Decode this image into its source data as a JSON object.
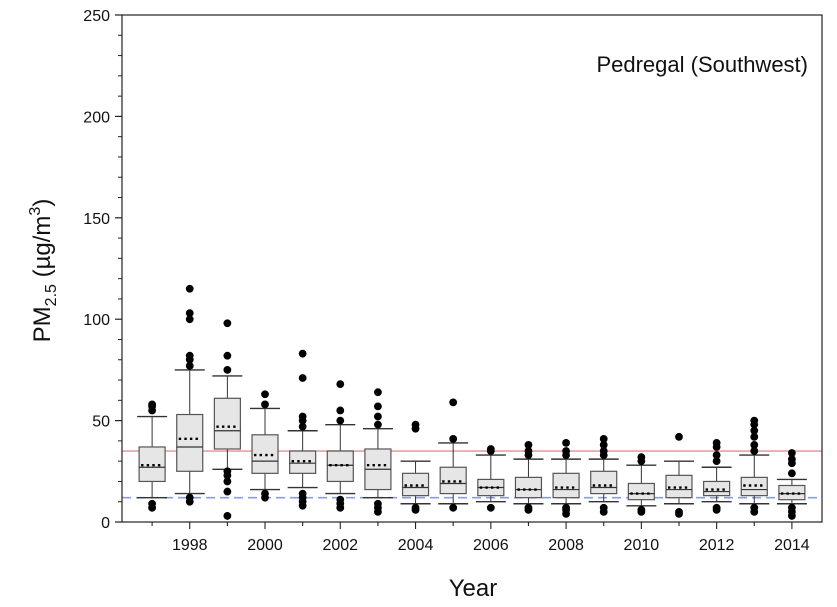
{
  "chart_data": {
    "type": "box",
    "title": "",
    "annotation": "Pedregal (Southwest)",
    "xlabel": "Year",
    "ylabel": {
      "prefix": "PM",
      "subscript": "2.5",
      "unit_prefix": " (µg/m",
      "unit_superscript": "3",
      "unit_suffix": ")"
    },
    "xlim": [
      1996.2,
      2014.8
    ],
    "ylim": [
      0,
      250
    ],
    "yticks": [
      0,
      50,
      100,
      150,
      200,
      250
    ],
    "xticks": [
      1998,
      2000,
      2002,
      2004,
      2006,
      2008,
      2010,
      2012,
      2014
    ],
    "grid": false,
    "reference_lines": [
      {
        "value": 35,
        "style": "solid",
        "color": "#e8a0a0"
      },
      {
        "value": 12,
        "style": "dashed",
        "color": "#8a9be8"
      }
    ],
    "colors": {
      "box_fill": "#e6e6e6",
      "box_stroke": "#555555",
      "whisker": "#333333",
      "outlier": "#000000",
      "mean_marker": "#000000"
    },
    "boxes": [
      {
        "year": 1997,
        "whislo": 12,
        "q1": 20,
        "median": 27,
        "mean": 28,
        "q3": 37,
        "whishi": 52,
        "outliers": [
          7,
          9,
          55,
          57,
          58
        ]
      },
      {
        "year": 1998,
        "whislo": 14,
        "q1": 25,
        "median": 37,
        "mean": 41,
        "q3": 53,
        "whishi": 75,
        "outliers": [
          10,
          12,
          77,
          80,
          82,
          100,
          103,
          115
        ]
      },
      {
        "year": 1999,
        "whislo": 26,
        "q1": 36,
        "median": 45,
        "mean": 47,
        "q3": 61,
        "whishi": 72,
        "outliers": [
          3,
          15,
          20,
          23,
          25,
          75,
          82,
          98
        ]
      },
      {
        "year": 2000,
        "whislo": 16,
        "q1": 24,
        "median": 30,
        "mean": 33,
        "q3": 43,
        "whishi": 56,
        "outliers": [
          12,
          14,
          58,
          63
        ]
      },
      {
        "year": 2001,
        "whislo": 17,
        "q1": 24,
        "median": 29,
        "mean": 30,
        "q3": 35,
        "whishi": 45,
        "outliers": [
          8,
          10,
          12,
          14,
          47,
          50,
          52,
          71,
          83
        ]
      },
      {
        "year": 2002,
        "whislo": 14,
        "q1": 20,
        "median": 28,
        "mean": 28,
        "q3": 35,
        "whishi": 48,
        "outliers": [
          7,
          9,
          11,
          50,
          55,
          68
        ]
      },
      {
        "year": 2003,
        "whislo": 12,
        "q1": 16,
        "median": 26,
        "mean": 28,
        "q3": 36,
        "whishi": 46,
        "outliers": [
          5,
          7,
          9,
          48,
          52,
          57,
          64
        ]
      },
      {
        "year": 2004,
        "whislo": 9,
        "q1": 13,
        "median": 17,
        "mean": 18,
        "q3": 24,
        "whishi": 30,
        "outliers": [
          6,
          7,
          46,
          48
        ]
      },
      {
        "year": 2005,
        "whislo": 9,
        "q1": 14,
        "median": 19,
        "mean": 20,
        "q3": 27,
        "whishi": 39,
        "outliers": [
          7,
          41,
          59
        ]
      },
      {
        "year": 2006,
        "whislo": 10,
        "q1": 13,
        "median": 17,
        "mean": 17,
        "q3": 21,
        "whishi": 33,
        "outliers": [
          7,
          35,
          36
        ]
      },
      {
        "year": 2007,
        "whislo": 9,
        "q1": 12,
        "median": 16,
        "mean": 16,
        "q3": 22,
        "whishi": 31,
        "outliers": [
          6,
          7,
          33,
          35,
          38
        ]
      },
      {
        "year": 2008,
        "whislo": 9,
        "q1": 12,
        "median": 16,
        "mean": 17,
        "q3": 24,
        "whishi": 31,
        "outliers": [
          4,
          6,
          7,
          33,
          35,
          39
        ]
      },
      {
        "year": 2009,
        "whislo": 10,
        "q1": 14,
        "median": 17,
        "mean": 18,
        "q3": 25,
        "whishi": 31,
        "outliers": [
          5,
          7,
          33,
          35,
          38,
          41
        ]
      },
      {
        "year": 2010,
        "whislo": 8,
        "q1": 11,
        "median": 14,
        "mean": 14,
        "q3": 19,
        "whishi": 28,
        "outliers": [
          5,
          6,
          30,
          32
        ]
      },
      {
        "year": 2011,
        "whislo": 9,
        "q1": 12,
        "median": 16,
        "mean": 17,
        "q3": 23,
        "whishi": 30,
        "outliers": [
          4,
          5,
          42
        ]
      },
      {
        "year": 2012,
        "whislo": 10,
        "q1": 13,
        "median": 15,
        "mean": 16,
        "q3": 20,
        "whishi": 27,
        "outliers": [
          6,
          7,
          30,
          33,
          37,
          39
        ]
      },
      {
        "year": 2013,
        "whislo": 9,
        "q1": 13,
        "median": 16,
        "mean": 18,
        "q3": 22,
        "whishi": 33,
        "outliers": [
          5,
          7,
          35,
          38,
          42,
          45,
          48,
          50
        ]
      },
      {
        "year": 2014,
        "whislo": 9,
        "q1": 11,
        "median": 14,
        "mean": 14,
        "q3": 18,
        "whishi": 21,
        "outliers": [
          3,
          5,
          7,
          24,
          29,
          31,
          34
        ]
      }
    ]
  }
}
